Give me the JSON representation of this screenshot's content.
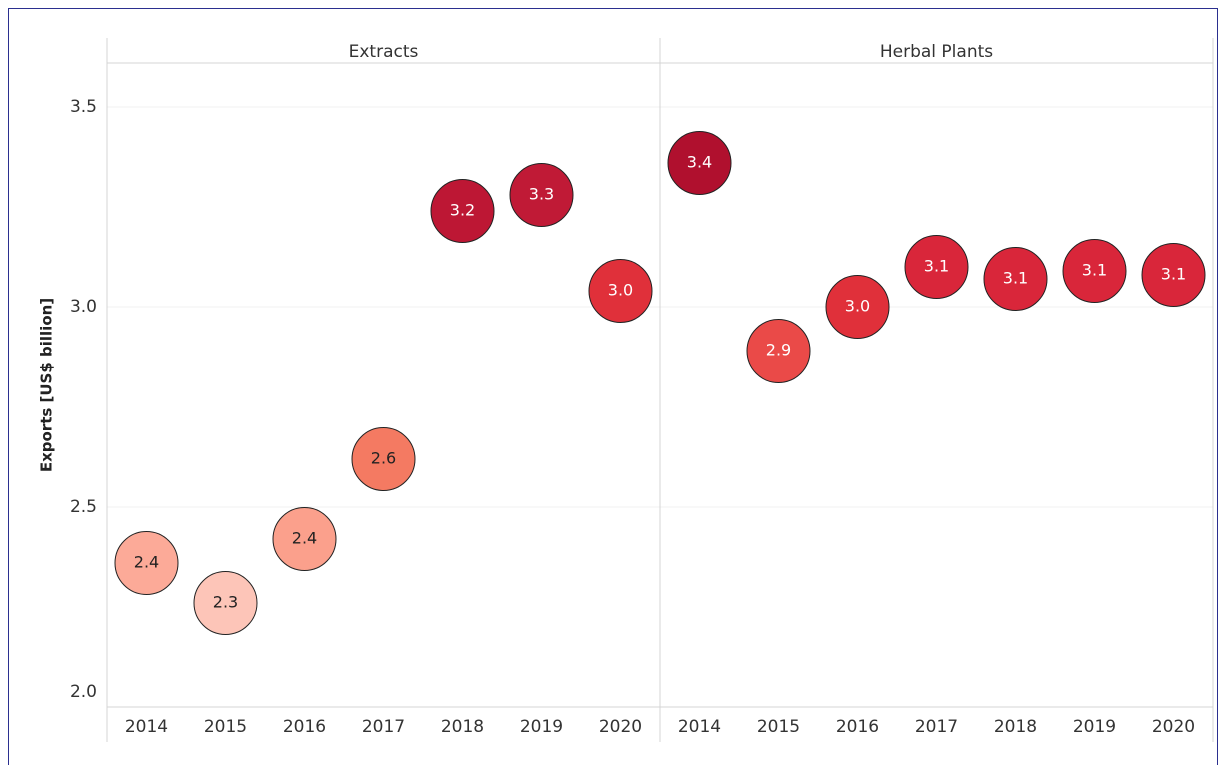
{
  "chart_data": {
    "type": "dot",
    "y_axis_label": "Exports [US$ billion]",
    "categories": [
      "2014",
      "2015",
      "2016",
      "2017",
      "2018",
      "2019",
      "2020"
    ],
    "series": [
      {
        "name": "Extracts",
        "values": [
          2.36,
          2.26,
          2.42,
          2.62,
          3.24,
          3.28,
          3.04
        ],
        "value_labels": [
          "2.4",
          "2.3",
          "2.4",
          "2.6",
          "3.2",
          "3.3",
          "3.0"
        ],
        "colors": [
          "#fcaa98",
          "#fdc5b8",
          "#fba08c",
          "#f47a62",
          "#bd1734",
          "#c01a36",
          "#e0303a"
        ]
      },
      {
        "name": "Herbal Plants",
        "values": [
          3.36,
          2.89,
          3.0,
          3.1,
          3.07,
          3.09,
          3.08
        ],
        "value_labels": [
          "3.4",
          "2.9",
          "3.0",
          "3.1",
          "3.1",
          "3.1",
          "3.1"
        ],
        "colors": [
          "#b0102e",
          "#ea4a48",
          "#e0303a",
          "#d9263a",
          "#d9263a",
          "#d9263a",
          "#d9263a"
        ]
      }
    ],
    "ylim": [
      2.0,
      3.61
    ],
    "yticks": [
      {
        "value": 2.0,
        "label": "2.0"
      },
      2.5,
      {
        "value": 3.0,
        "label": "3.0"
      },
      3.5
    ],
    "grid": true
  }
}
